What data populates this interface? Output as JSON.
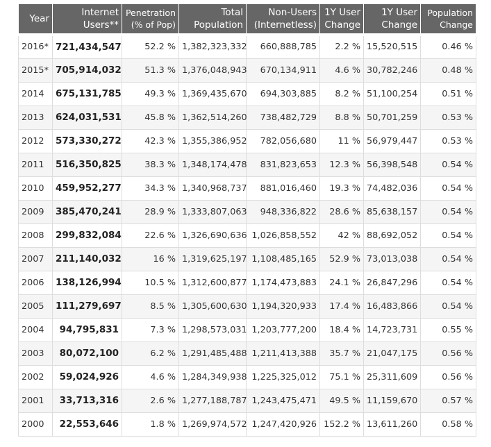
{
  "headers": [
    {
      "lines": [
        "Year"
      ]
    },
    {
      "lines": [
        "Internet",
        "Users**"
      ]
    },
    {
      "lines": [
        "Penetration",
        "(% of Pop)"
      ]
    },
    {
      "lines": [
        "Total",
        "Population"
      ]
    },
    {
      "lines": [
        "Non-Users",
        "(Internetless)"
      ]
    },
    {
      "lines": [
        "1Y User",
        "Change"
      ]
    },
    {
      "lines": [
        "1Y User",
        "Change"
      ]
    },
    {
      "lines": [
        "Population",
        "Change"
      ]
    }
  ],
  "rows": [
    [
      "2016*",
      "721,434,547",
      "52.2 %",
      "1,382,323,332",
      "660,888,785",
      "2.2 %",
      "15,520,515",
      "0.46 %"
    ],
    [
      "2015*",
      "705,914,032",
      "51.3 %",
      "1,376,048,943",
      "670,134,911",
      "4.6 %",
      "30,782,246",
      "0.48 %"
    ],
    [
      "2014",
      "675,131,785",
      "49.3 %",
      "1,369,435,670",
      "694,303,885",
      "8.2 %",
      "51,100,254",
      "0.51 %"
    ],
    [
      "2013",
      "624,031,531",
      "45.8 %",
      "1,362,514,260",
      "738,482,729",
      "8.8 %",
      "50,701,259",
      "0.53 %"
    ],
    [
      "2012",
      "573,330,272",
      "42.3 %",
      "1,355,386,952",
      "782,056,680",
      "11 %",
      "56,979,447",
      "0.53 %"
    ],
    [
      "2011",
      "516,350,825",
      "38.3 %",
      "1,348,174,478",
      "831,823,653",
      "12.3 %",
      "56,398,548",
      "0.54 %"
    ],
    [
      "2010",
      "459,952,277",
      "34.3 %",
      "1,340,968,737",
      "881,016,460",
      "19.3 %",
      "74,482,036",
      "0.54 %"
    ],
    [
      "2009",
      "385,470,241",
      "28.9 %",
      "1,333,807,063",
      "948,336,822",
      "28.6 %",
      "85,638,157",
      "0.54 %"
    ],
    [
      "2008",
      "299,832,084",
      "22.6 %",
      "1,326,690,636",
      "1,026,858,552",
      "42 %",
      "88,692,052",
      "0.54 %"
    ],
    [
      "2007",
      "211,140,032",
      "16 %",
      "1,319,625,197",
      "1,108,485,165",
      "52.9 %",
      "73,013,038",
      "0.54 %"
    ],
    [
      "2006",
      "138,126,994",
      "10.5 %",
      "1,312,600,877",
      "1,174,473,883",
      "24.1 %",
      "26,847,296",
      "0.54 %"
    ],
    [
      "2005",
      "111,279,697",
      "8.5 %",
      "1,305,600,630",
      "1,194,320,933",
      "17.4 %",
      "16,483,866",
      "0.54 %"
    ],
    [
      "2004",
      "94,795,831",
      "7.3 %",
      "1,298,573,031",
      "1,203,777,200",
      "18.4 %",
      "14,723,731",
      "0.55 %"
    ],
    [
      "2003",
      "80,072,100",
      "6.2 %",
      "1,291,485,488",
      "1,211,413,388",
      "35.7 %",
      "21,047,175",
      "0.56 %"
    ],
    [
      "2002",
      "59,024,926",
      "4.6 %",
      "1,284,349,938",
      "1,225,325,012",
      "75.1 %",
      "25,311,609",
      "0.56 %"
    ],
    [
      "2001",
      "33,713,316",
      "2.6 %",
      "1,277,188,787",
      "1,243,475,471",
      "49.5 %",
      "11,159,670",
      "0.57 %"
    ],
    [
      "2000",
      "22,553,646",
      "1.8 %",
      "1,269,974,572",
      "1,247,420,926",
      "152.2 %",
      "13,611,260",
      "0.58 %"
    ]
  ],
  "colors": {
    "header_bg": "#666666",
    "header_text": "#ffffff",
    "alt_row_bg": "#f5f5f5",
    "grid_line": "#dddddd"
  }
}
